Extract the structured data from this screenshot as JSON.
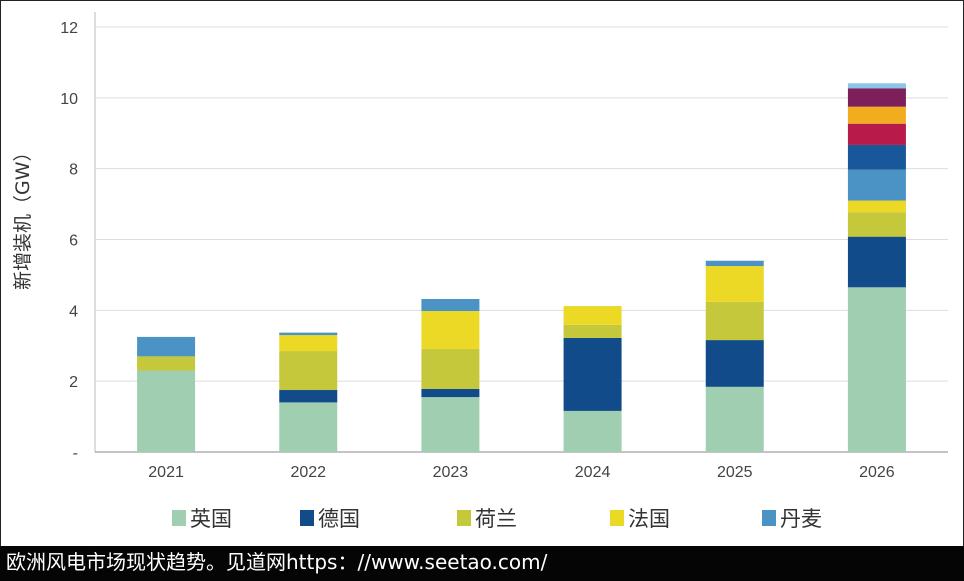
{
  "chart_data": {
    "type": "bar",
    "stacked": true,
    "title": "",
    "xlabel": "",
    "ylabel": "新增装机（GW）",
    "ylim": [
      0,
      12
    ],
    "yticks": [
      0,
      2,
      4,
      6,
      8,
      10,
      12
    ],
    "ytick_labels": [
      "-",
      "2",
      "4",
      "6",
      "8",
      "10",
      "12"
    ],
    "grid": true,
    "categories": [
      "2021",
      "2022",
      "2023",
      "2024",
      "2025",
      "2026"
    ],
    "series": [
      {
        "name": "英国",
        "color": "#9fcfb0",
        "values": [
          2.3,
          1.4,
          1.55,
          1.16,
          1.84,
          4.65
        ]
      },
      {
        "name": "德国",
        "color": "#114b8a",
        "values": [
          0,
          0.35,
          0.23,
          2.06,
          1.32,
          1.43
        ]
      },
      {
        "name": "荷兰",
        "color": "#c5c83a",
        "values": [
          0.4,
          1.1,
          1.13,
          0.37,
          1.08,
          0.69
        ]
      },
      {
        "name": "法国",
        "color": "#ecd925",
        "values": [
          0,
          0.45,
          1.07,
          0.53,
          1.01,
          0.33
        ]
      },
      {
        "name": "丹麦",
        "color": "#4b93c4",
        "values": [
          0.55,
          0.07,
          0.34,
          0,
          0.15,
          0.87
        ]
      },
      {
        "color": "#17579a",
        "values": [
          0,
          0,
          0,
          0,
          0,
          0.7
        ]
      },
      {
        "color": "#b81a4a",
        "values": [
          0,
          0,
          0,
          0,
          0,
          0.6
        ]
      },
      {
        "color": "#f2ad1e",
        "values": [
          0,
          0,
          0,
          0,
          0,
          0.48
        ]
      },
      {
        "color": "#7d1f5a",
        "values": [
          0,
          0,
          0,
          0,
          0,
          0.52
        ]
      },
      {
        "color": "#8cc4e6",
        "values": [
          0,
          0,
          0,
          0,
          0,
          0.14
        ]
      }
    ],
    "legend": [
      "英国",
      "德国",
      "荷兰",
      "法国",
      "丹麦"
    ],
    "legend_placement": "bottom"
  },
  "footer": "欧洲风电市场现状趋势。见道网https：//www.seetao.com/"
}
